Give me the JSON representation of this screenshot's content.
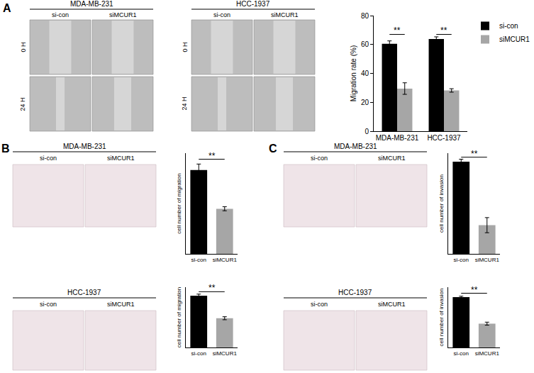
{
  "figure": {
    "panels": [
      {
        "label": "A",
        "groups": [
          {
            "title": "MDA-MB-231",
            "columns": [
              "si-con",
              "siMCUR1"
            ],
            "rows": [
              "0 H",
              "24 H"
            ]
          },
          {
            "title": "HCC-1937",
            "columns": [
              "si-con",
              "siMCUR1"
            ],
            "rows": [
              "0 H",
              "24 H"
            ]
          }
        ]
      },
      {
        "label": "B",
        "groups": [
          {
            "title": "MDA-MB-231",
            "columns": [
              "si-con",
              "siMCUR1"
            ]
          },
          {
            "title": "HCC-1937",
            "columns": [
              "si-con",
              "siMCUR1"
            ]
          }
        ]
      },
      {
        "label": "C",
        "groups": [
          {
            "title": "MDA-MB-231",
            "columns": [
              "si-con",
              "siMCUR1"
            ]
          },
          {
            "title": "HCC-1937",
            "columns": [
              "si-con",
              "siMCUR1"
            ]
          }
        ]
      }
    ]
  },
  "chart_data": [
    {
      "type": "bar",
      "categories": [
        "MDA-MB-231",
        "HCC-1937"
      ],
      "series": [
        {
          "name": "si-con",
          "color": "#000000",
          "values": [
            60.5,
            63.8
          ],
          "errors": [
            2,
            1.5
          ]
        },
        {
          "name": "siMCUR1",
          "color": "#a6a6a6",
          "values": [
            29.5,
            28.2
          ],
          "errors": [
            4,
            1.2
          ]
        }
      ],
      "y_label": "Migration rate (%)",
      "ylim": [
        0,
        80
      ],
      "yticks": [
        0,
        20,
        40,
        60,
        80
      ],
      "legend": "top right",
      "annotations": [
        {
          "text": "**",
          "category": "MDA-MB-231",
          "y": 67
        },
        {
          "text": "**",
          "category": "HCC-1937",
          "y": 67
        }
      ]
    },
    {
      "type": "bar",
      "categories": [
        "si-con",
        "siMCUR1"
      ],
      "values": [
        208,
        112
      ],
      "errors": [
        15,
        5
      ],
      "colors": [
        "#000000",
        "#a6a6a6"
      ],
      "y_label": "cell number of migration",
      "ylim": [
        0,
        250
      ],
      "tick_labels": "x",
      "annotations": [
        {
          "text": "**",
          "from": "si-con",
          "to": "siMCUR1",
          "y": 235
        }
      ]
    },
    {
      "type": "bar",
      "categories": [
        "si-con",
        "siMCUR1"
      ],
      "values": [
        172,
        97
      ],
      "errors": [
        5,
        5
      ],
      "colors": [
        "#000000",
        "#a6a6a6"
      ],
      "y_label": "cell number of migration",
      "ylim": [
        0,
        200
      ],
      "tick_labels": "x",
      "annotations": [
        {
          "text": "**",
          "from": "si-con",
          "to": "siMCUR1",
          "y": 185
        }
      ]
    },
    {
      "type": "bar",
      "categories": [
        "si-con",
        "siMCUR1"
      ],
      "values": [
        183,
        57
      ],
      "errors": [
        5,
        15
      ],
      "colors": [
        "#000000",
        "#a6a6a6"
      ],
      "y_label": "cell number of invasion",
      "ylim": [
        0,
        200
      ],
      "tick_labels": "x",
      "annotations": [
        {
          "text": "**",
          "from": "si-con",
          "to": "siMCUR1",
          "y": 192
        }
      ]
    },
    {
      "type": "bar",
      "categories": [
        "si-con",
        "siMCUR1"
      ],
      "values": [
        167,
        79
      ],
      "errors": [
        3,
        5
      ],
      "colors": [
        "#000000",
        "#a6a6a6"
      ],
      "y_label": "cell number of invasion",
      "ylim": [
        0,
        200
      ],
      "tick_labels": "x",
      "annotations": [
        {
          "text": "**",
          "from": "si-con",
          "to": "siMCUR1",
          "y": 180
        }
      ]
    }
  ]
}
